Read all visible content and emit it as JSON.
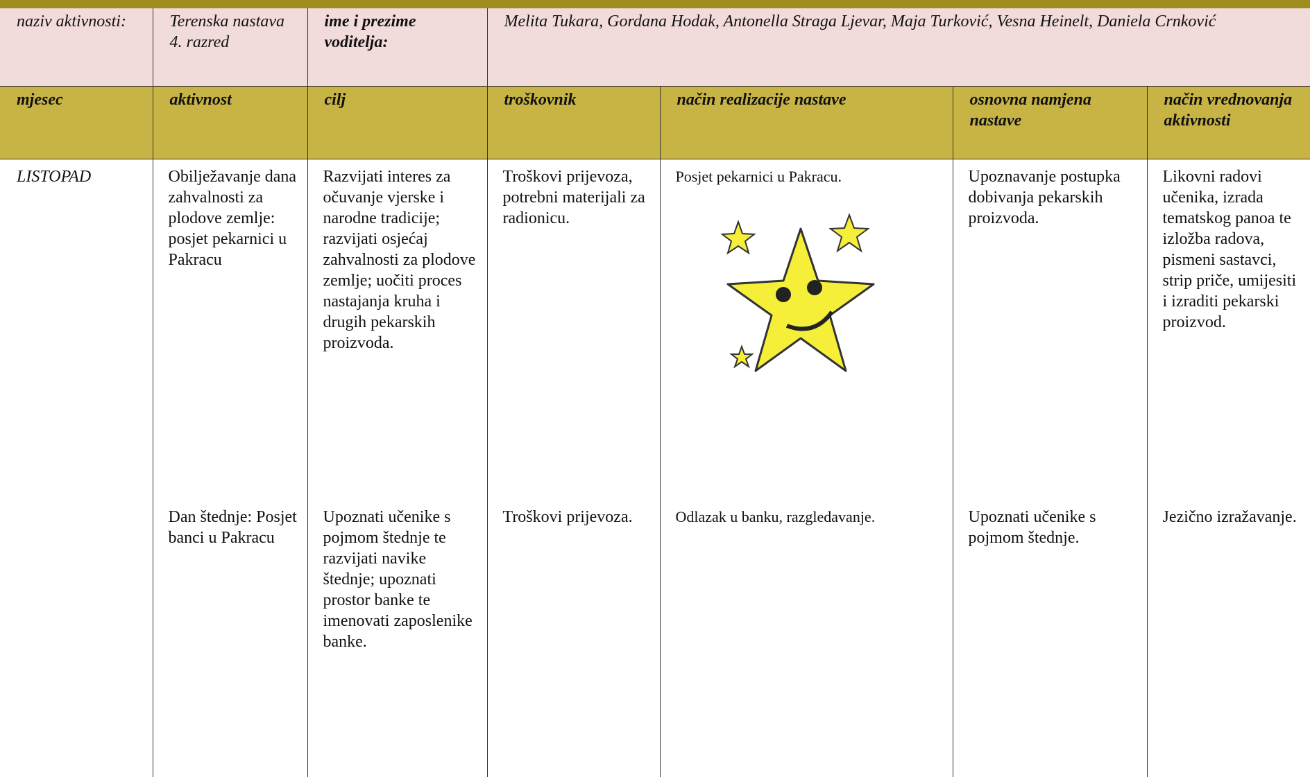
{
  "info": {
    "activity_label": "naziv aktivnosti:",
    "activity_name": "Terenska nastava 4. razred",
    "leader_label": "ime i prezime voditelja:",
    "leaders": "Melita Tukara, Gordana Hodak, Antonella Straga Ljevar, Maja Turković, Vesna Heinelt, Daniela Crnković"
  },
  "table": {
    "headers": [
      "mjesec",
      "aktivnost",
      "cilj",
      "troškovnik",
      "način realizacije nastave",
      "osnovna namjena nastave",
      "način vrednovanja aktivnosti"
    ],
    "month": "LISTOPAD",
    "rows": [
      [
        "Obilježavanje dana zahvalnosti za plodove zemlje: posjet pekarnici u Pakracu",
        "Razvijati interes za očuvanje vjerske i narodne tradicije; razvijati osjećaj zahvalnosti za plodove zemlje; uočiti proces nastajanja kruha i drugih pekarskih proizvoda.",
        "Troškovi prijevoza, potrebni materijali za radionicu.",
        "Posjet pekarnici u Pakracu.",
        "Upoznavanje postupka dobivanja pekarskih proizvoda.",
        "Likovni radovi učenika, izrada tematskog panoa te izložba radova, pismeni sastavci, strip priče, umijesiti i izraditi pekarski proizvod."
      ],
      [
        "Dan štednje: Posjet banci u Pakracu",
        "Upoznati učenike s pojmom štednje te razvijati navike štednje; upoznati prostor banke te imenovati zaposlenike banke.",
        "Troškovi prijevoza.",
        "Odlazak u banku, razgledavanje.",
        "Upoznati učenike s pojmom štednje.",
        "Jezično izražavanje."
      ]
    ]
  }
}
